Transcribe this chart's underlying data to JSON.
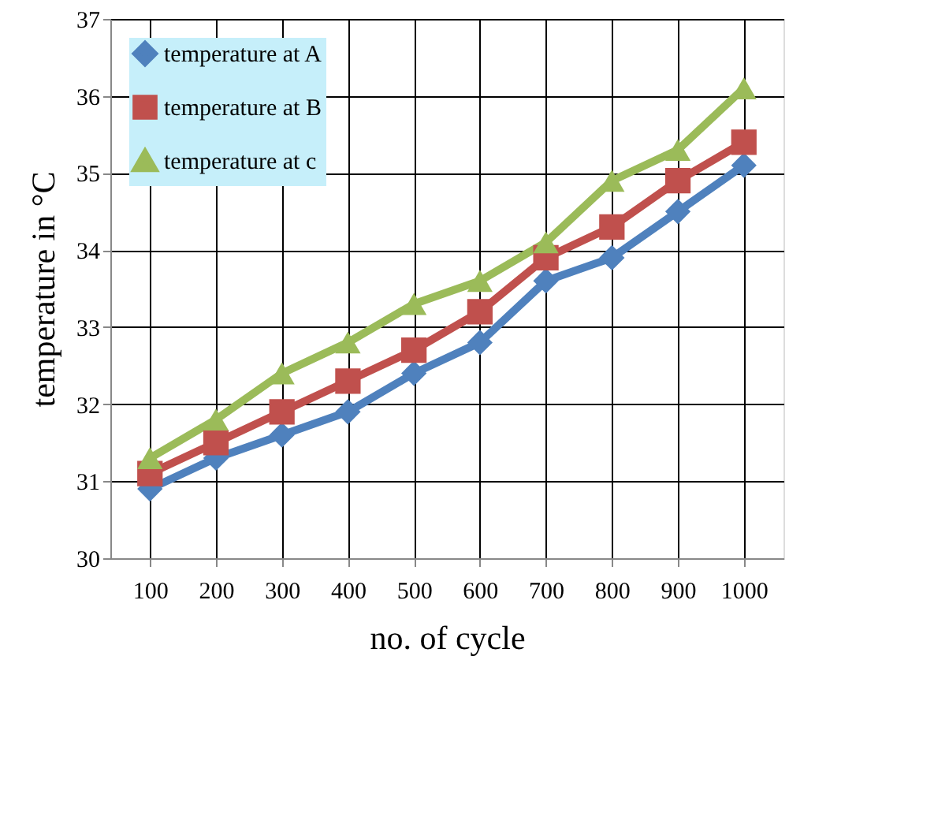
{
  "chart_data": {
    "type": "line",
    "xlabel": "no. of cycle",
    "ylabel": "temperature in °C",
    "categories": [
      "100",
      "200",
      "300",
      "400",
      "500",
      "600",
      "700",
      "800",
      "900",
      "1000"
    ],
    "series": [
      {
        "name": "temperature at A",
        "color": "#4f81bd",
        "marker": "diamond",
        "values": [
          30.9,
          31.3,
          31.6,
          31.9,
          32.4,
          32.8,
          33.6,
          33.9,
          34.5,
          35.1
        ]
      },
      {
        "name": "temperature at B",
        "color": "#c0504d",
        "marker": "square",
        "values": [
          31.1,
          31.5,
          31.9,
          32.3,
          32.7,
          33.2,
          33.9,
          34.3,
          34.9,
          35.4
        ]
      },
      {
        "name": "temperature at c",
        "color": "#9bbb59",
        "marker": "triangle",
        "values": [
          31.3,
          31.8,
          32.4,
          32.8,
          33.3,
          33.6,
          34.1,
          34.9,
          35.3,
          36.1
        ]
      }
    ],
    "ylim": [
      30,
      37
    ],
    "yticks": [
      30,
      31,
      32,
      33,
      34,
      35,
      36,
      37
    ],
    "grid": true,
    "legend": "top left",
    "line_style": "solid"
  }
}
